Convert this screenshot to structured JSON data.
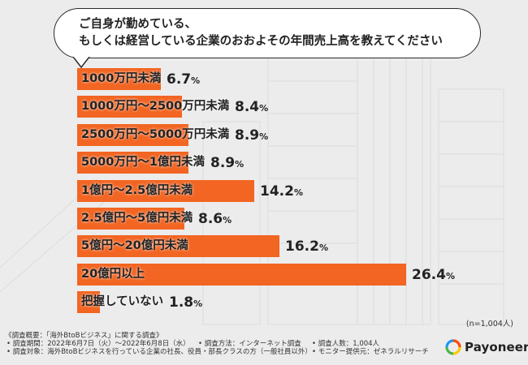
{
  "question": {
    "line1": "ご自身が勤めている、",
    "line2": "もしくは経営している企業のおおよその年間売上高を教えてください"
  },
  "chart_data": {
    "type": "bar",
    "orientation": "horizontal",
    "title": "ご自身が勤めている、もしくは経営している企業のおおよその年間売上高を教えてください",
    "unit": "%",
    "xlim": [
      0,
      26.4
    ],
    "categories": [
      "1000万円未満",
      "1000万円〜2500万円未満",
      "2500万円〜5000万円未満",
      "5000万円〜1億円未満",
      "1億円〜2.5億円未満",
      "2.5億円〜5億円未満",
      "5億円〜20億円未満",
      "20億円以上",
      "把握していない"
    ],
    "values": [
      6.7,
      8.4,
      8.9,
      8.9,
      14.2,
      8.6,
      16.2,
      26.4,
      1.8
    ],
    "value_labels": [
      "6.7",
      "8.4",
      "8.9",
      "8.9",
      "14.2",
      "8.6",
      "16.2",
      "26.4",
      "1.8"
    ],
    "value_suffix": "%",
    "bar_color": "#f26522"
  },
  "sample_size": "(n=1,004人)",
  "footer": {
    "header": "《調査概要：「海外BtoBビジネス」に関する調査》",
    "period": "• 調査期間：2022年6月7日（火）～2022年6月8日（水）",
    "method": "• 調査方法：インターネット調査",
    "count": "• 調査人数：1,004人",
    "target": "• 調査対象：海外BtoBビジネスを行っている企業の社長、役員・部長クラスの方（一般社員以外）",
    "provider": "• モニター提供元：ゼネラルリサーチ"
  },
  "brand": {
    "name": "Payoneer",
    "logo_icon": "payoneer-logo-icon",
    "logo_colors": [
      "#ff4800",
      "#ffc800",
      "#45b649",
      "#2196f3"
    ]
  }
}
